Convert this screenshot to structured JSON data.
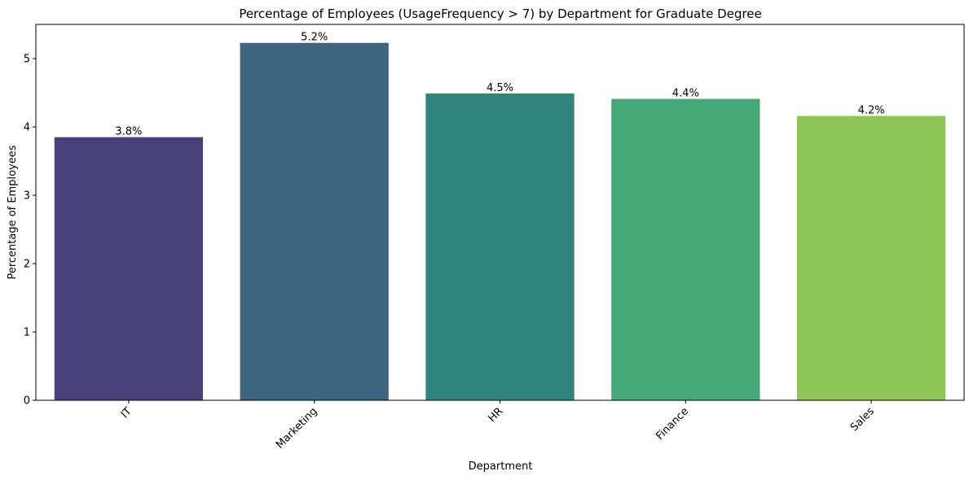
{
  "chart_data": {
    "type": "bar",
    "title": "Percentage of Employees (UsageFrequency > 7) by Department for Graduate Degree",
    "xlabel": "Department",
    "ylabel": "Percentage of Employees",
    "categories": [
      "IT",
      "Marketing",
      "HR",
      "Finance",
      "Sales"
    ],
    "values": [
      3.85,
      5.23,
      4.49,
      4.41,
      4.16
    ],
    "data_labels": [
      "3.8%",
      "5.2%",
      "4.5%",
      "4.4%",
      "4.2%"
    ],
    "colors": [
      "#48417a",
      "#3e6580",
      "#2f847e",
      "#46a878",
      "#8dc556"
    ],
    "ylim": [
      0,
      5.5
    ],
    "yticks": [
      0,
      1,
      2,
      3,
      4,
      5
    ],
    "ytick_labels": [
      "0",
      "1",
      "2",
      "3",
      "4",
      "5"
    ],
    "x_tick_rotation": 45,
    "grid": false,
    "legend": "none"
  }
}
